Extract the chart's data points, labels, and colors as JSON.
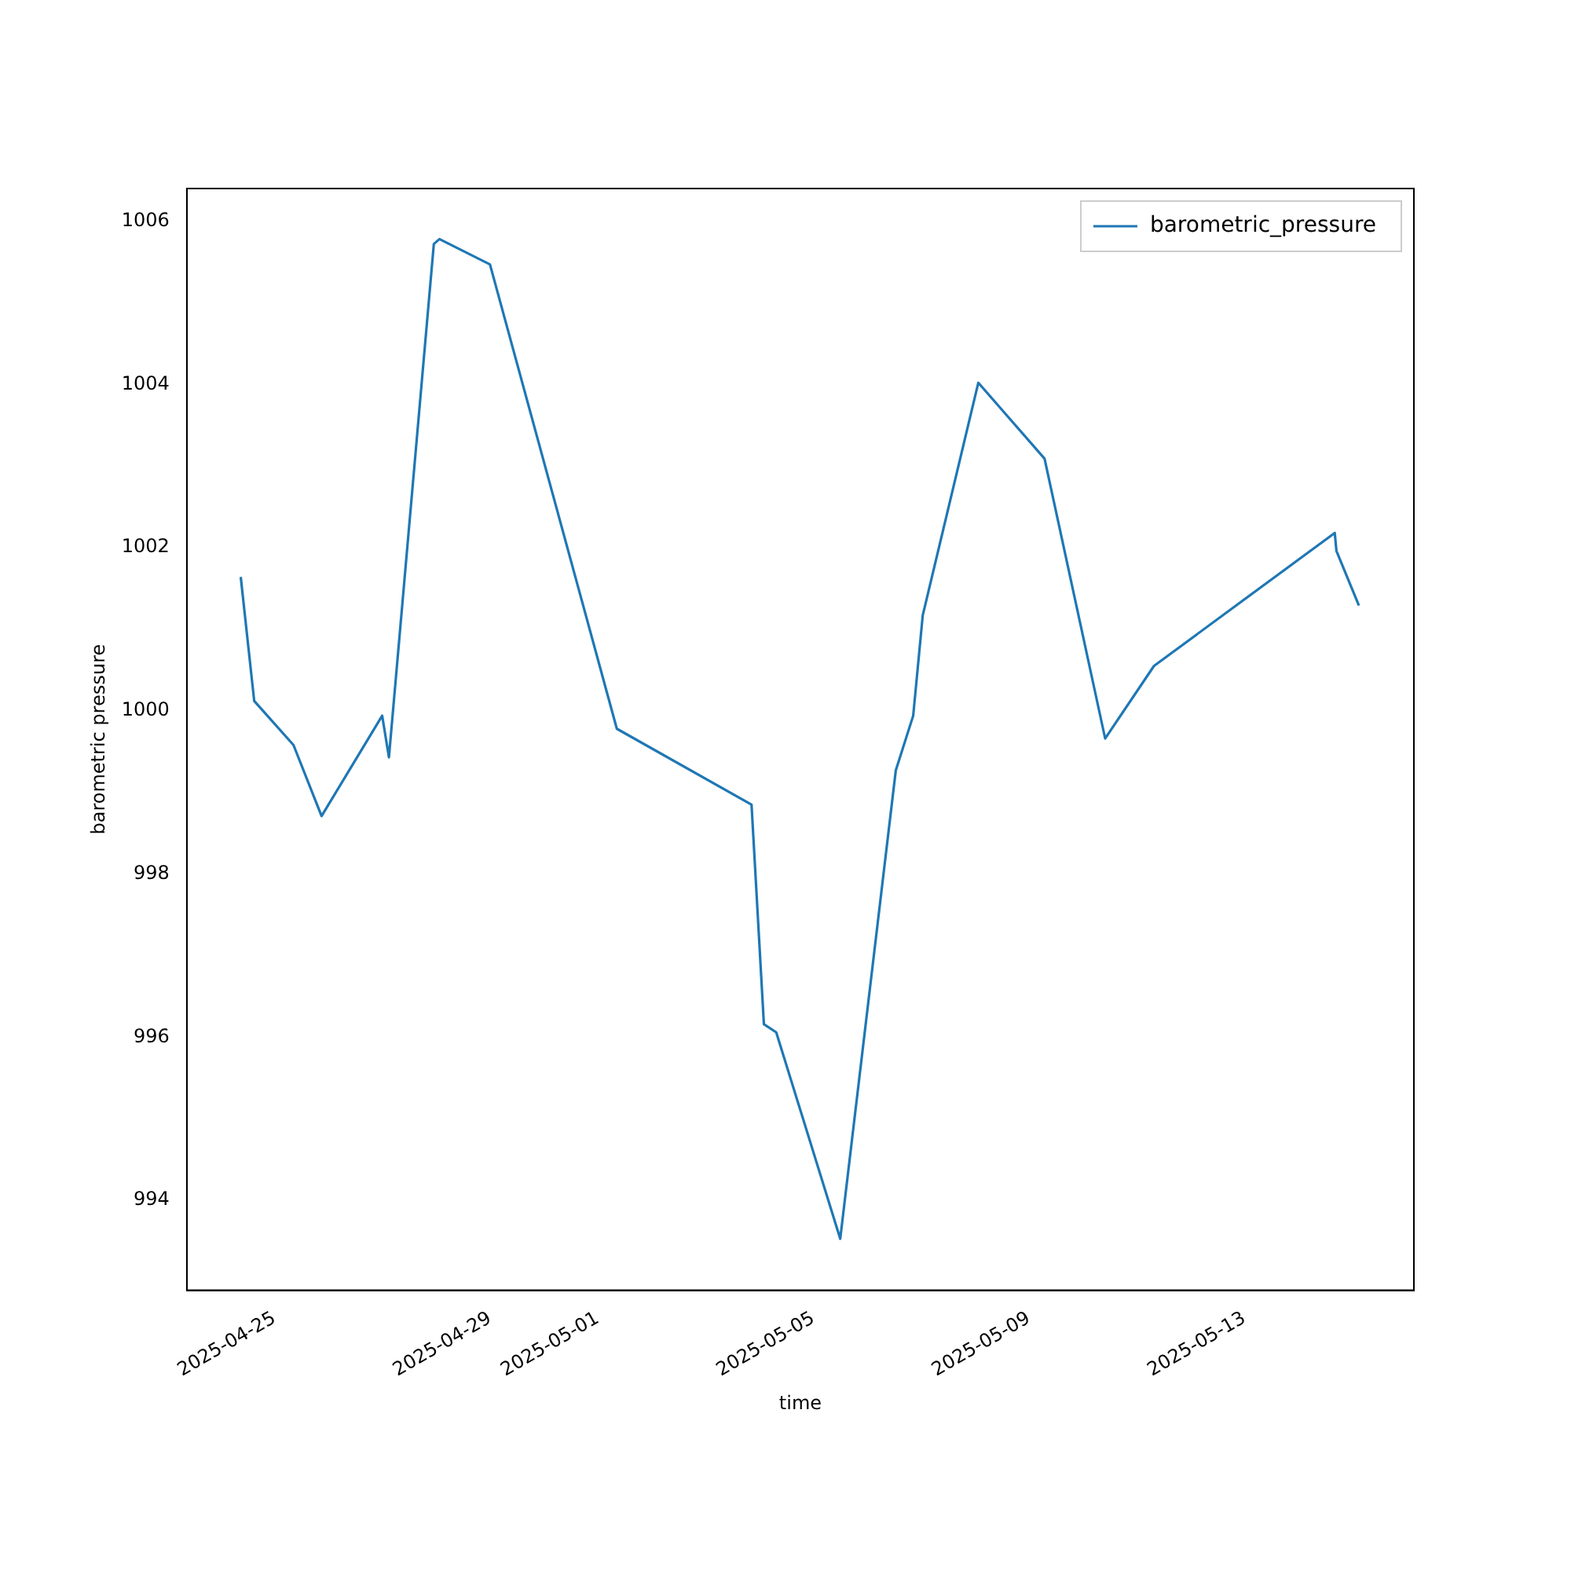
{
  "chart_data": {
    "type": "line",
    "xlabel": "time",
    "ylabel": "barometric pressure",
    "x": [
      "2025-04-24T09:00",
      "2025-04-24T15:00",
      "2025-04-25T08:30",
      "2025-04-25T21:00",
      "2025-04-27T00:00",
      "2025-04-27T03:00",
      "2025-04-27T23:00",
      "2025-04-28T01:30",
      "2025-04-29T00:00",
      "2025-05-01T08:30",
      "2025-05-03T20:30",
      "2025-05-04T02:00",
      "2025-05-04T07:30",
      "2025-05-05T12:00",
      "2025-05-06T12:45",
      "2025-05-06T20:30",
      "2025-05-07T00:45",
      "2025-05-08T01:30",
      "2025-05-09T07:00",
      "2025-05-10T10:00",
      "2025-05-11T07:45",
      "2025-05-14T16:15",
      "2025-05-14T17:00",
      "2025-05-15T03:00"
    ],
    "series": [
      {
        "name": "barometric_pressure",
        "color": "#1f77b4",
        "values": [
          1001.64,
          1000.12,
          999.58,
          998.71,
          999.94,
          999.43,
          1005.72,
          1005.78,
          1005.47,
          999.78,
          998.85,
          996.16,
          996.06,
          993.53,
          999.27,
          999.94,
          1001.17,
          1004.02,
          1003.09,
          999.66,
          1000.55,
          1002.18,
          1001.96,
          1001.29
        ]
      }
    ],
    "xlim": [
      "2025-04-23T09:00",
      "2025-05-16T03:30"
    ],
    "xticks": [
      "2025-04-25",
      "2025-04-29",
      "2025-05-01",
      "2025-05-05",
      "2025-05-09",
      "2025-05-13"
    ],
    "ylim": [
      992.9,
      1006.4
    ],
    "yticks": [
      994,
      996,
      998,
      1000,
      1002,
      1004,
      1006
    ],
    "grid": false,
    "legend": "top right",
    "marker": "none",
    "line_style": "solid"
  }
}
